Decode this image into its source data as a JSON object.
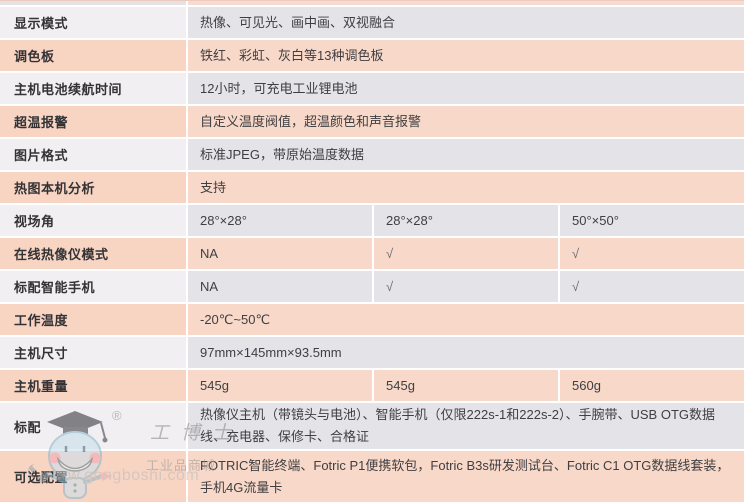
{
  "table": {
    "rows": [
      {
        "label": "显示模式",
        "value": "热像、可见光、画中画、双视融合",
        "tone": "gray"
      },
      {
        "label": "调色板",
        "value": "铁红、彩虹、灰白等13种调色板",
        "tone": "peach"
      },
      {
        "label": "主机电池续航时间",
        "value": "12小时，可充电工业锂电池",
        "tone": "gray"
      },
      {
        "label": "超温报警",
        "value": "自定义温度阀值，超温颜色和声音报警",
        "tone": "peach"
      },
      {
        "label": "图片格式",
        "value": "标准JPEG，带原始温度数据",
        "tone": "gray"
      },
      {
        "label": "热图本机分析",
        "value": "支持",
        "tone": "peach"
      },
      {
        "label": "视场角",
        "values": [
          "28°×28°",
          "28°×28°",
          "50°×50°"
        ],
        "tone": "gray"
      },
      {
        "label": "在线热像仪模式",
        "values": [
          "NA",
          "√",
          "√"
        ],
        "tone": "peach"
      },
      {
        "label": "标配智能手机",
        "values": [
          "NA",
          "√",
          "√"
        ],
        "tone": "gray"
      },
      {
        "label": "工作温度",
        "value": "-20℃~50℃",
        "tone": "peach"
      },
      {
        "label": "主机尺寸",
        "value": "97mm×145mm×93.5mm",
        "tone": "gray"
      },
      {
        "label": "主机重量",
        "values": [
          "545g",
          "545g",
          "560g"
        ],
        "tone": "peach"
      },
      {
        "label": "标配",
        "value": "热像仪主机（带镜头与电池）、智能手机（仅限222s-1和222s-2）、手腕带、USB OTG数据线、充电器、保修卡、合格证",
        "tone": "gray",
        "tall": true
      },
      {
        "label": "可选配置",
        "value": "FOTRIC智能终端、Fotric P1便携软包，Fotric B3s研发测试台、Fotric C1 OTG数据线套装，手机4G流量卡",
        "tone": "peach",
        "tall": true,
        "cut": true
      }
    ]
  },
  "watermark": {
    "registered": "®",
    "brand": "工博士",
    "tagline": "工业品商城",
    "url": "www.gongboshi.com"
  },
  "colors": {
    "gray_label": "#f1eff1",
    "gray_value": "#e4e3e8",
    "peach_label": "#f8d4c3",
    "peach_value": "#f8d8c8",
    "label_text": "#333336",
    "value_text": "#3f3f42",
    "sliver_left": "#e3e2e7",
    "sliver_right": "#f6dbd2"
  }
}
